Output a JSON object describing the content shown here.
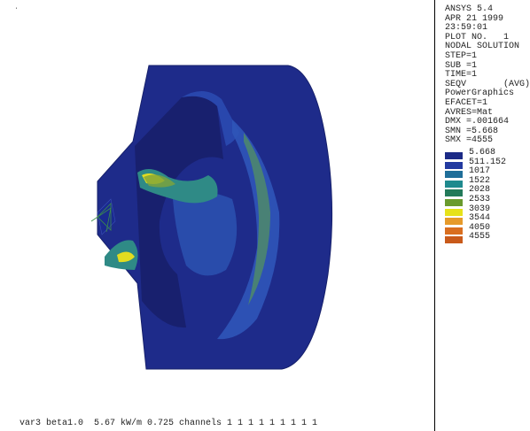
{
  "header": {
    "lines": [
      "ANSYS 5.4",
      "APR 21 1999",
      "23:59:01",
      "PLOT NO.   1",
      "NODAL SOLUTION",
      "STEP=1",
      "SUB =1",
      "TIME=1",
      "SEQV       (AVG)",
      "PowerGraphics",
      "EFACET=1",
      "AVRES=Mat",
      "DMX =.001664",
      "SMN =5.668",
      "SMX =4555"
    ]
  },
  "legend": {
    "entries": [
      {
        "label": "5.668",
        "color": "#1c2a86"
      },
      {
        "label": "511.152",
        "color": "#233aa0"
      },
      {
        "label": "1017",
        "color": "#1f6e99"
      },
      {
        "label": "1522",
        "color": "#1f8a8e"
      },
      {
        "label": "2028",
        "color": "#237a5a"
      },
      {
        "label": "2533",
        "color": "#6a9b2e"
      },
      {
        "label": "3039",
        "color": "#e6e21a"
      },
      {
        "label": "3544",
        "color": "#e69a2a"
      },
      {
        "label": "4050",
        "color": "#d96e1f"
      },
      {
        "label": "4555",
        "color": "#c95a1a"
      }
    ]
  },
  "caption": "var3 beta1.0  5.67 kW/m 0.725 channels 1 1 1 1 1 1 1 1 1",
  "corner_mark": "ʻ"
}
